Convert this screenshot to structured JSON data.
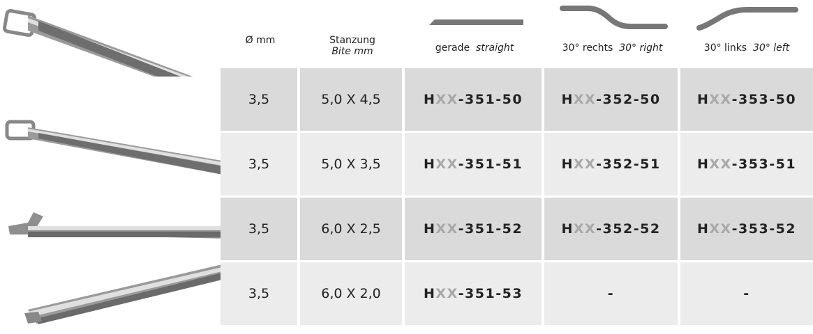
{
  "headers": {
    "diameter": "Ø mm",
    "bite_de": "Stanzung",
    "bite_en": "Bite mm",
    "straight_de": "gerade",
    "straight_en": "straight",
    "right_de": "30° rechts",
    "right_en": "30° right",
    "left_de": "30° links",
    "left_en": "30° left"
  },
  "rows": [
    {
      "diameter": "3,5",
      "bite": "5,0 X 4,5",
      "straight": {
        "h": "H",
        "xx": "XX",
        "rest": "-351-50"
      },
      "right": {
        "h": "H",
        "xx": "XX",
        "rest": "-352-50"
      },
      "left": {
        "h": "H",
        "xx": "XX",
        "rest": "-353-50"
      }
    },
    {
      "diameter": "3,5",
      "bite": "5,0 X 3,5",
      "straight": {
        "h": "H",
        "xx": "XX",
        "rest": "-351-51"
      },
      "right": {
        "h": "H",
        "xx": "XX",
        "rest": "-352-51"
      },
      "left": {
        "h": "H",
        "xx": "XX",
        "rest": "-353-51"
      }
    },
    {
      "diameter": "3,5",
      "bite": "6,0 X 2,5",
      "straight": {
        "h": "H",
        "xx": "XX",
        "rest": "-351-52"
      },
      "right": {
        "h": "H",
        "xx": "XX",
        "rest": "-352-52"
      },
      "left": {
        "h": "H",
        "xx": "XX",
        "rest": "-353-52"
      }
    },
    {
      "diameter": "3,5",
      "bite": "6,0 X 2,0",
      "straight": {
        "h": "H",
        "xx": "XX",
        "rest": "-351-53"
      },
      "right_text": "-",
      "left_text": "-"
    }
  ],
  "colors": {
    "row_dark": "#dadadb",
    "row_light": "#ececed",
    "xx_gray": "#a8a8a8",
    "shape_gray": "#777777"
  }
}
